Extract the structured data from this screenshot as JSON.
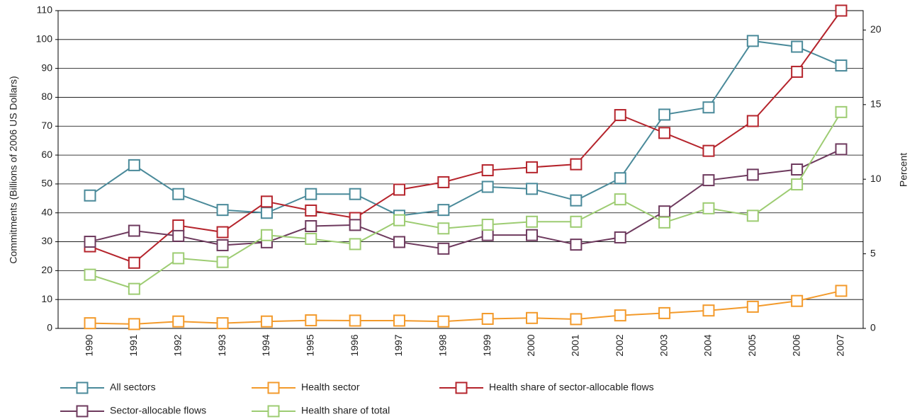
{
  "chart_data": {
    "type": "line",
    "y_label": "Commitments (Billions of 2006 US Dollars)",
    "y2_label": "Percent",
    "categories": [
      "1990",
      "1991",
      "1992",
      "1993",
      "1994",
      "1995",
      "1996",
      "1997",
      "1998",
      "1999",
      "2000",
      "2001",
      "2002",
      "2003",
      "2004",
      "2005",
      "2006",
      "2007"
    ],
    "ylim": [
      0,
      110
    ],
    "yticks": [
      0,
      10,
      20,
      30,
      40,
      50,
      60,
      70,
      80,
      90,
      100,
      110
    ],
    "y2lim": [
      0,
      21.3
    ],
    "y2ticks": [
      0,
      5,
      10,
      15,
      20
    ],
    "grid": true,
    "series": [
      {
        "name": "All sectors",
        "color": "#4a8a9a",
        "values": [
          46,
          56.5,
          46.5,
          41,
          40,
          46.5,
          46.5,
          39,
          41,
          49,
          48.3,
          44.3,
          52,
          74,
          76.5,
          99.5,
          97.5,
          91
        ]
      },
      {
        "name": "Health sector",
        "color": "#f39a2b",
        "values": [
          1.8,
          1.5,
          2.4,
          1.8,
          2.4,
          2.8,
          2.7,
          2.7,
          2.4,
          3.3,
          3.6,
          3.2,
          4.5,
          5.3,
          6.2,
          7.5,
          9.5,
          13
        ]
      },
      {
        "name": "Health share of sector-allocable flows",
        "color": "#b5242c",
        "axis": "y2",
        "values": [
          5.5,
          4.4,
          6.9,
          6.45,
          8.5,
          7.9,
          7.4,
          9.3,
          9.8,
          10.6,
          10.8,
          11,
          14.3,
          13.1,
          11.9,
          13.9,
          17.2,
          21.3
        ]
      },
      {
        "name": "Sector-allocable flows",
        "color": "#6e3a5e",
        "values": [
          30,
          33.8,
          32,
          28.8,
          29.8,
          35.4,
          35.8,
          29.9,
          27.6,
          32.3,
          32.3,
          29,
          31.5,
          40.5,
          51.3,
          53.2,
          55,
          62
        ]
      },
      {
        "name": "Health share of total",
        "color": "#9dcc72",
        "axis": "y2",
        "values": [
          3.6,
          2.65,
          4.7,
          4.45,
          6.25,
          6,
          5.65,
          7.25,
          6.7,
          6.95,
          7.15,
          7.15,
          8.65,
          7.1,
          8.05,
          7.55,
          9.65,
          14.5
        ]
      }
    ]
  }
}
